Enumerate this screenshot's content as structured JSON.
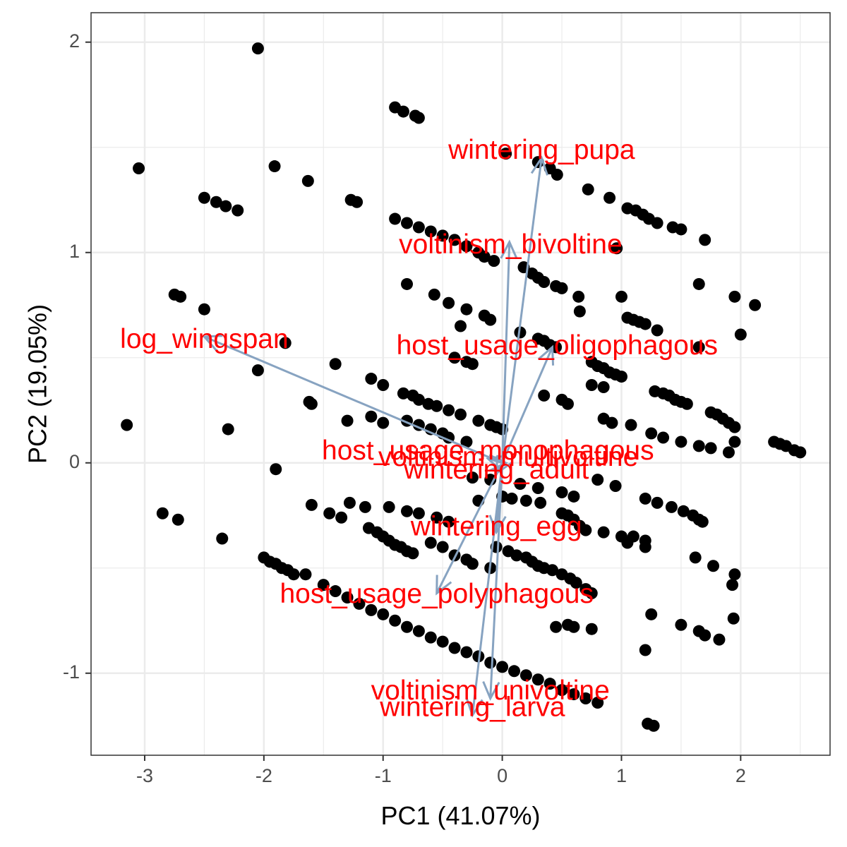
{
  "chart_data": {
    "type": "scatter",
    "title": "",
    "xlabel": "PC1 (41.07%)",
    "ylabel": "PC2 (19.05%)",
    "xlim": [
      -3.45,
      2.75
    ],
    "ylim": [
      -1.39,
      2.14
    ],
    "xticks": [
      -3,
      -2,
      -1,
      0,
      1,
      2
    ],
    "xtick_labels": [
      "-3",
      "-2",
      "-1",
      "0",
      "1",
      "2"
    ],
    "yticks": [
      -1,
      0,
      1,
      2
    ],
    "ytick_labels": [
      "-1",
      "0",
      "1",
      "2"
    ],
    "grid": true,
    "legend": "none",
    "colors": {
      "points": "#000000",
      "arrows": "#87a3c1",
      "labels": "#ff0000",
      "grid": "#ebebeb",
      "panel_border": "#333333"
    },
    "points": [
      [
        -2.05,
        1.97
      ],
      [
        -0.9,
        1.69
      ],
      [
        -0.83,
        1.67
      ],
      [
        -0.73,
        1.65
      ],
      [
        -0.7,
        1.64
      ],
      [
        -3.05,
        1.4
      ],
      [
        -1.91,
        1.41
      ],
      [
        -1.63,
        1.34
      ],
      [
        -2.5,
        1.26
      ],
      [
        -2.4,
        1.24
      ],
      [
        -2.32,
        1.22
      ],
      [
        -2.22,
        1.2
      ],
      [
        -1.27,
        1.25
      ],
      [
        -1.22,
        1.24
      ],
      [
        0.03,
        1.47
      ],
      [
        0.3,
        1.43
      ],
      [
        0.4,
        1.4
      ],
      [
        0.46,
        1.37
      ],
      [
        0.72,
        1.3
      ],
      [
        0.9,
        1.26
      ],
      [
        1.05,
        1.21
      ],
      [
        1.12,
        1.2
      ],
      [
        1.18,
        1.18
      ],
      [
        1.23,
        1.16
      ],
      [
        1.3,
        1.14
      ],
      [
        1.43,
        1.12
      ],
      [
        1.5,
        1.11
      ],
      [
        1.7,
        1.06
      ],
      [
        -0.9,
        1.16
      ],
      [
        -0.8,
        1.14
      ],
      [
        -0.7,
        1.12
      ],
      [
        -0.6,
        1.1
      ],
      [
        -0.5,
        1.08
      ],
      [
        -0.4,
        1.06
      ],
      [
        -0.3,
        1.03
      ],
      [
        -0.2,
        1.0
      ],
      [
        -0.15,
        0.98
      ],
      [
        -0.07,
        0.96
      ],
      [
        0.18,
        0.93
      ],
      [
        0.25,
        0.9
      ],
      [
        0.3,
        0.88
      ],
      [
        0.35,
        0.86
      ],
      [
        0.45,
        0.84
      ],
      [
        0.5,
        0.83
      ],
      [
        0.64,
        0.79
      ],
      [
        0.65,
        0.72
      ],
      [
        0.96,
        1.02
      ],
      [
        -2.75,
        0.8
      ],
      [
        -2.7,
        0.79
      ],
      [
        -2.5,
        0.73
      ],
      [
        -1.82,
        0.57
      ],
      [
        -0.8,
        0.85
      ],
      [
        -0.57,
        0.8
      ],
      [
        -0.45,
        0.76
      ],
      [
        -0.3,
        0.73
      ],
      [
        -0.15,
        0.7
      ],
      [
        -0.1,
        0.68
      ],
      [
        -0.35,
        0.65
      ],
      [
        0.15,
        0.62
      ],
      [
        0.3,
        0.59
      ],
      [
        0.35,
        0.58
      ],
      [
        0.4,
        0.56
      ],
      [
        0.45,
        0.55
      ],
      [
        1.0,
        0.79
      ],
      [
        1.65,
        0.85
      ],
      [
        1.95,
        0.79
      ],
      [
        2.12,
        0.75
      ],
      [
        1.05,
        0.69
      ],
      [
        1.1,
        0.68
      ],
      [
        1.15,
        0.67
      ],
      [
        1.2,
        0.66
      ],
      [
        1.3,
        0.63
      ],
      [
        1.65,
        0.55
      ],
      [
        2.0,
        0.61
      ],
      [
        -0.4,
        0.5
      ],
      [
        -0.3,
        0.48
      ],
      [
        -0.25,
        0.47
      ],
      [
        0.75,
        0.48
      ],
      [
        0.8,
        0.46
      ],
      [
        0.85,
        0.45
      ],
      [
        0.9,
        0.43
      ],
      [
        0.95,
        0.42
      ],
      [
        1.0,
        0.41
      ],
      [
        -2.05,
        0.44
      ],
      [
        -1.4,
        0.47
      ],
      [
        -1.1,
        0.4
      ],
      [
        -1.0,
        0.37
      ],
      [
        -0.83,
        0.33
      ],
      [
        -0.75,
        0.32
      ],
      [
        -0.7,
        0.3
      ],
      [
        -0.62,
        0.28
      ],
      [
        -0.55,
        0.27
      ],
      [
        -0.45,
        0.25
      ],
      [
        -0.35,
        0.23
      ],
      [
        -0.2,
        0.2
      ],
      [
        -0.1,
        0.18
      ],
      [
        -0.05,
        0.17
      ],
      [
        0.0,
        0.16
      ],
      [
        0.35,
        0.32
      ],
      [
        0.5,
        0.3
      ],
      [
        0.55,
        0.28
      ],
      [
        0.75,
        0.37
      ],
      [
        0.85,
        0.36
      ],
      [
        1.28,
        0.34
      ],
      [
        1.35,
        0.33
      ],
      [
        1.4,
        0.32
      ],
      [
        1.45,
        0.3
      ],
      [
        1.5,
        0.29
      ],
      [
        1.55,
        0.28
      ],
      [
        1.75,
        0.24
      ],
      [
        1.8,
        0.23
      ],
      [
        1.85,
        0.21
      ],
      [
        1.9,
        0.19
      ],
      [
        1.95,
        0.17
      ],
      [
        -1.62,
        0.29
      ],
      [
        -1.6,
        0.28
      ],
      [
        -1.3,
        0.2
      ],
      [
        -2.3,
        0.16
      ],
      [
        -3.15,
        0.18
      ],
      [
        -1.1,
        0.22
      ],
      [
        -1.0,
        0.19
      ],
      [
        -0.8,
        0.2
      ],
      [
        -0.7,
        0.18
      ],
      [
        -0.6,
        0.16
      ],
      [
        -0.5,
        0.14
      ],
      [
        -0.45,
        0.12
      ],
      [
        -0.3,
        0.1
      ],
      [
        0.85,
        0.21
      ],
      [
        0.92,
        0.19
      ],
      [
        1.08,
        0.18
      ],
      [
        1.25,
        0.14
      ],
      [
        1.35,
        0.12
      ],
      [
        1.5,
        0.1
      ],
      [
        1.65,
        0.08
      ],
      [
        1.75,
        0.07
      ],
      [
        1.9,
        0.05
      ],
      [
        1.95,
        0.1
      ],
      [
        2.28,
        0.1
      ],
      [
        2.33,
        0.09
      ],
      [
        2.38,
        0.08
      ],
      [
        2.45,
        0.06
      ],
      [
        2.5,
        0.05
      ],
      [
        -1.9,
        -0.03
      ],
      [
        -0.25,
        -0.07
      ],
      [
        -0.1,
        -0.08
      ],
      [
        0.15,
        -0.1
      ],
      [
        0.3,
        -0.12
      ],
      [
        0.5,
        -0.14
      ],
      [
        0.6,
        -0.16
      ],
      [
        0.8,
        -0.08
      ],
      [
        0.95,
        -0.11
      ],
      [
        -1.6,
        -0.2
      ],
      [
        -1.28,
        -0.19
      ],
      [
        -1.15,
        -0.21
      ],
      [
        -1.45,
        -0.24
      ],
      [
        -1.35,
        -0.26
      ],
      [
        -0.95,
        -0.21
      ],
      [
        -0.8,
        -0.23
      ],
      [
        -0.7,
        -0.24
      ],
      [
        -0.55,
        -0.26
      ],
      [
        -0.45,
        -0.28
      ],
      [
        -0.2,
        -0.18
      ],
      [
        0.0,
        -0.16
      ],
      [
        0.08,
        -0.17
      ],
      [
        0.2,
        -0.18
      ],
      [
        0.32,
        -0.19
      ],
      [
        0.5,
        -0.24
      ],
      [
        0.55,
        -0.25
      ],
      [
        0.6,
        -0.27
      ],
      [
        0.65,
        -0.3
      ],
      [
        0.7,
        -0.32
      ],
      [
        0.85,
        -0.33
      ],
      [
        1.0,
        -0.35
      ],
      [
        1.05,
        -0.38
      ],
      [
        1.2,
        -0.17
      ],
      [
        1.3,
        -0.19
      ],
      [
        1.42,
        -0.21
      ],
      [
        1.52,
        -0.23
      ],
      [
        1.6,
        -0.25
      ],
      [
        1.65,
        -0.27
      ],
      [
        1.68,
        -0.28
      ],
      [
        -2.85,
        -0.24
      ],
      [
        -2.72,
        -0.27
      ],
      [
        -2.35,
        -0.36
      ],
      [
        -1.12,
        -0.31
      ],
      [
        -1.05,
        -0.33
      ],
      [
        -1.0,
        -0.35
      ],
      [
        -0.95,
        -0.37
      ],
      [
        -0.9,
        -0.39
      ],
      [
        -0.85,
        -0.4
      ],
      [
        -0.8,
        -0.42
      ],
      [
        -0.75,
        -0.43
      ],
      [
        -0.6,
        -0.38
      ],
      [
        -0.5,
        -0.4
      ],
      [
        -0.4,
        -0.44
      ],
      [
        -0.3,
        -0.46
      ],
      [
        -0.25,
        -0.48
      ],
      [
        -0.1,
        -0.5
      ],
      [
        -0.05,
        -0.4
      ],
      [
        0.05,
        -0.42
      ],
      [
        0.12,
        -0.44
      ],
      [
        0.2,
        -0.45
      ],
      [
        0.25,
        -0.47
      ],
      [
        0.3,
        -0.49
      ],
      [
        0.35,
        -0.5
      ],
      [
        0.42,
        -0.51
      ],
      [
        0.5,
        -0.53
      ],
      [
        0.57,
        -0.55
      ],
      [
        0.62,
        -0.57
      ],
      [
        0.7,
        -0.6
      ],
      [
        0.75,
        -0.62
      ],
      [
        1.1,
        -0.35
      ],
      [
        1.2,
        -0.37
      ],
      [
        1.2,
        -0.4
      ],
      [
        1.62,
        -0.45
      ],
      [
        1.77,
        -0.49
      ],
      [
        1.95,
        -0.53
      ],
      [
        1.93,
        -0.58
      ],
      [
        1.94,
        -0.74
      ],
      [
        1.25,
        -0.72
      ],
      [
        1.5,
        -0.77
      ],
      [
        1.65,
        -0.8
      ],
      [
        1.7,
        -0.82
      ],
      [
        1.82,
        -0.84
      ],
      [
        1.2,
        -0.89
      ],
      [
        -2.0,
        -0.45
      ],
      [
        -1.95,
        -0.47
      ],
      [
        -1.9,
        -0.48
      ],
      [
        -1.85,
        -0.5
      ],
      [
        -1.8,
        -0.51
      ],
      [
        -1.75,
        -0.53
      ],
      [
        -1.65,
        -0.53
      ],
      [
        -1.5,
        -0.58
      ],
      [
        -1.4,
        -0.61
      ],
      [
        -1.3,
        -0.64
      ],
      [
        -1.2,
        -0.67
      ],
      [
        -1.1,
        -0.7
      ],
      [
        -1.0,
        -0.72
      ],
      [
        -0.9,
        -0.75
      ],
      [
        -0.8,
        -0.78
      ],
      [
        -0.7,
        -0.8
      ],
      [
        -0.6,
        -0.83
      ],
      [
        -0.5,
        -0.85
      ],
      [
        -0.4,
        -0.88
      ],
      [
        -0.3,
        -0.9
      ],
      [
        -0.2,
        -0.92
      ],
      [
        -0.1,
        -0.95
      ],
      [
        0.0,
        -0.97
      ],
      [
        0.1,
        -0.99
      ],
      [
        0.2,
        -1.01
      ],
      [
        0.3,
        -1.03
      ],
      [
        0.4,
        -1.05
      ],
      [
        0.5,
        -1.08
      ],
      [
        0.6,
        -1.1
      ],
      [
        0.7,
        -1.12
      ],
      [
        0.8,
        -1.14
      ],
      [
        0.45,
        -0.78
      ],
      [
        0.55,
        -0.77
      ],
      [
        0.6,
        -0.78
      ],
      [
        0.75,
        -0.79
      ],
      [
        1.22,
        -1.24
      ],
      [
        1.27,
        -1.25
      ]
    ],
    "loadings": [
      {
        "name": "log_wingspan",
        "x": -2.5,
        "y": 0.6,
        "label_x": -2.5,
        "label_y": 0.58
      },
      {
        "name": "wintering_pupa",
        "x": 0.33,
        "y": 1.45,
        "label_x": 0.33,
        "label_y": 1.48
      },
      {
        "name": "voltinism_bivoltine",
        "x": 0.06,
        "y": 1.05,
        "label_x": 0.07,
        "label_y": 1.03
      },
      {
        "name": "host_usage_oligophagous",
        "x": 0.42,
        "y": 0.55,
        "label_x": 0.46,
        "label_y": 0.55
      },
      {
        "name": "host_usage_monophagous",
        "x": -0.12,
        "y": 0.02,
        "label_x": -0.12,
        "label_y": 0.05
      },
      {
        "name": "voltinism_multivoltine",
        "x": 0.03,
        "y": 0.0,
        "label_x": 0.05,
        "label_y": 0.02
      },
      {
        "name": "wintering_adult",
        "x": -0.05,
        "y": -0.05,
        "label_x": -0.05,
        "label_y": -0.04
      },
      {
        "name": "wintering_egg",
        "x": -0.05,
        "y": -0.33,
        "label_x": -0.05,
        "label_y": -0.31
      },
      {
        "name": "host_usage_polyphagous",
        "x": -0.55,
        "y": -0.62,
        "label_x": -0.55,
        "label_y": -0.63
      },
      {
        "name": "voltinism_univoltine",
        "x": -0.1,
        "y": -1.12,
        "label_x": -0.1,
        "label_y": -1.09
      },
      {
        "name": "wintering_larva",
        "x": -0.25,
        "y": -1.2,
        "label_x": -0.25,
        "label_y": -1.17
      }
    ]
  }
}
